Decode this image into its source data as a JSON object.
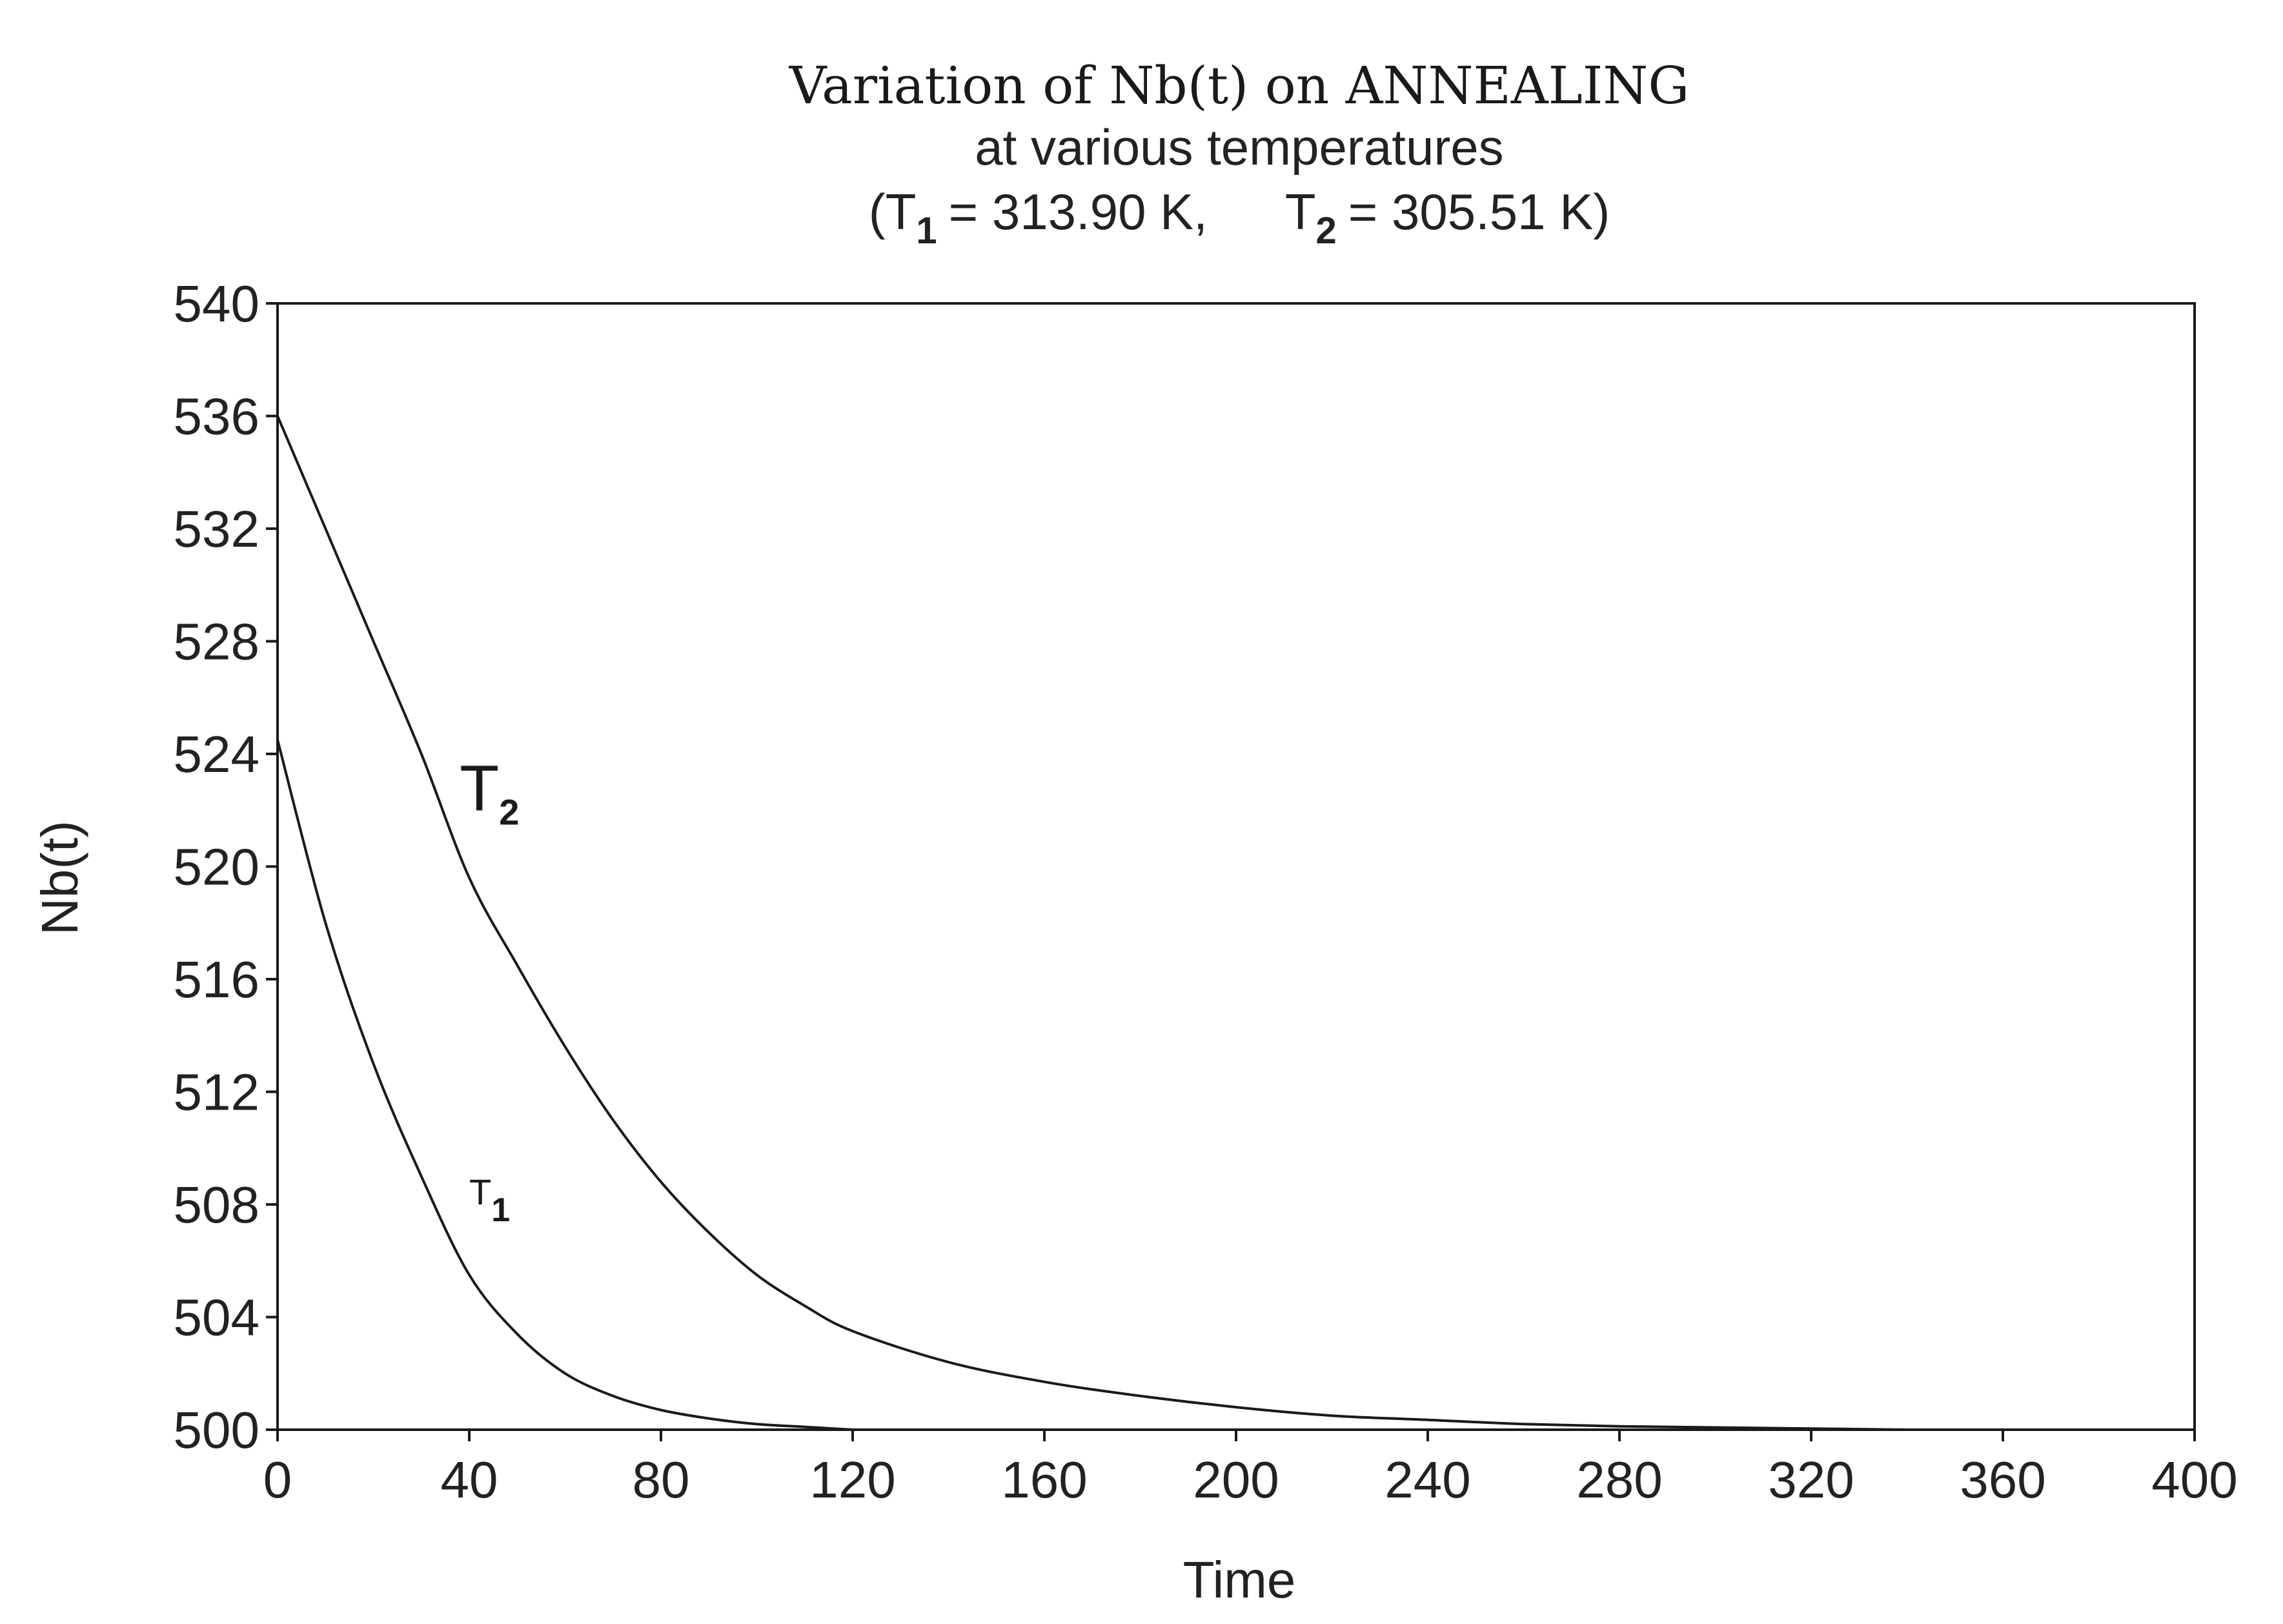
{
  "chart_data": {
    "type": "line",
    "title": "Variation of Nb(t) on ANNEALING",
    "subtitle": "at various temperatures",
    "subtitle2": {
      "open": "(T",
      "t1_sub": "1",
      "t1_value": "= 313.90 K,",
      "t2_letter": "T",
      "t2_sub": "2",
      "t2_value": "= 305.51 K)"
    },
    "xlabel": "Time",
    "ylabel": "Nb(t)",
    "xlim": [
      0,
      400
    ],
    "ylim": [
      500,
      540
    ],
    "xticks": [
      0,
      40,
      80,
      120,
      160,
      200,
      240,
      280,
      320,
      360,
      400
    ],
    "yticks": [
      500,
      504,
      508,
      512,
      516,
      520,
      524,
      528,
      532,
      536,
      540
    ],
    "grid": false,
    "legend": "none",
    "series": [
      {
        "label": "T",
        "label_sub": "1",
        "label_pos": [
          40,
          508
        ],
        "label_style": "small",
        "x": [
          0,
          10,
          20,
          30,
          40,
          50,
          60,
          70,
          80,
          90,
          100,
          110,
          120
        ],
        "y": [
          524.5,
          518.0,
          513.0,
          509.0,
          505.5,
          503.4,
          502.0,
          501.2,
          500.7,
          500.4,
          500.2,
          500.1,
          500.0
        ]
      },
      {
        "label": "T",
        "label_sub": "2",
        "label_pos": [
          38,
          522
        ],
        "label_style": "large",
        "x": [
          0,
          10,
          20,
          30,
          40,
          50,
          60,
          70,
          80,
          90,
          100,
          110,
          120,
          140,
          160,
          180,
          200,
          220,
          240,
          260,
          280,
          300,
          320,
          340
        ],
        "y": [
          536.0,
          532.0,
          528.0,
          524.0,
          519.6,
          516.5,
          513.6,
          511.0,
          508.8,
          507.0,
          505.5,
          504.4,
          503.5,
          502.4,
          501.7,
          501.2,
          500.8,
          500.5,
          500.35,
          500.2,
          500.12,
          500.08,
          500.04,
          500.0
        ]
      }
    ]
  }
}
